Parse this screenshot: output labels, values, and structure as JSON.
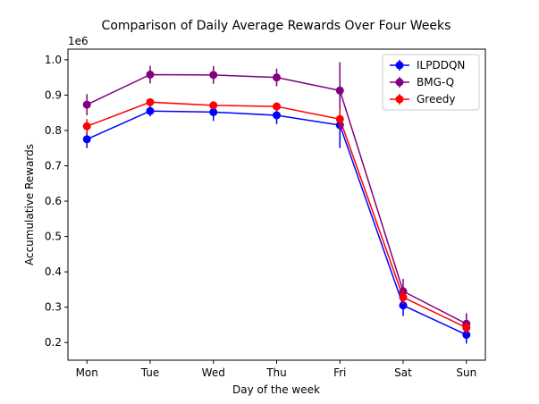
{
  "chart_data": {
    "type": "line",
    "title": "Comparison of Daily Average Rewards Over Four Weeks",
    "xlabel": "Day of the week",
    "ylabel": "Accumulative Rewards",
    "y_scale_label": "1e6",
    "categories": [
      "Mon",
      "Tue",
      "Wed",
      "Thu",
      "Fri",
      "Sat",
      "Sun"
    ],
    "ylim": [
      0.15,
      1.03
    ],
    "yticks": [
      0.2,
      0.3,
      0.4,
      0.5,
      0.6,
      0.7,
      0.8,
      0.9,
      1.0
    ],
    "ytick_labels": [
      "0.2",
      "0.3",
      "0.4",
      "0.5",
      "0.6",
      "0.7",
      "0.8",
      "0.9",
      "1.0"
    ],
    "legend_position": "top-right",
    "grid": false,
    "series": [
      {
        "name": "ILPDDQN",
        "color": "#0000ff",
        "values": [
          0.775,
          0.855,
          0.852,
          0.843,
          0.815,
          0.305,
          0.222
        ],
        "errors": [
          0.025,
          0.015,
          0.025,
          0.025,
          0.065,
          0.03,
          0.025
        ]
      },
      {
        "name": "BMG-Q",
        "color": "#800080",
        "values": [
          0.873,
          0.958,
          0.957,
          0.95,
          0.913,
          0.345,
          0.253
        ],
        "errors": [
          0.03,
          0.025,
          0.025,
          0.025,
          0.08,
          0.035,
          0.03
        ]
      },
      {
        "name": "Greedy",
        "color": "#ff0000",
        "values": [
          0.812,
          0.88,
          0.871,
          0.868,
          0.832,
          0.328,
          0.242
        ],
        "errors": [
          0.02,
          0.01,
          0.012,
          0.012,
          0.03,
          0.02,
          0.015
        ]
      }
    ]
  }
}
